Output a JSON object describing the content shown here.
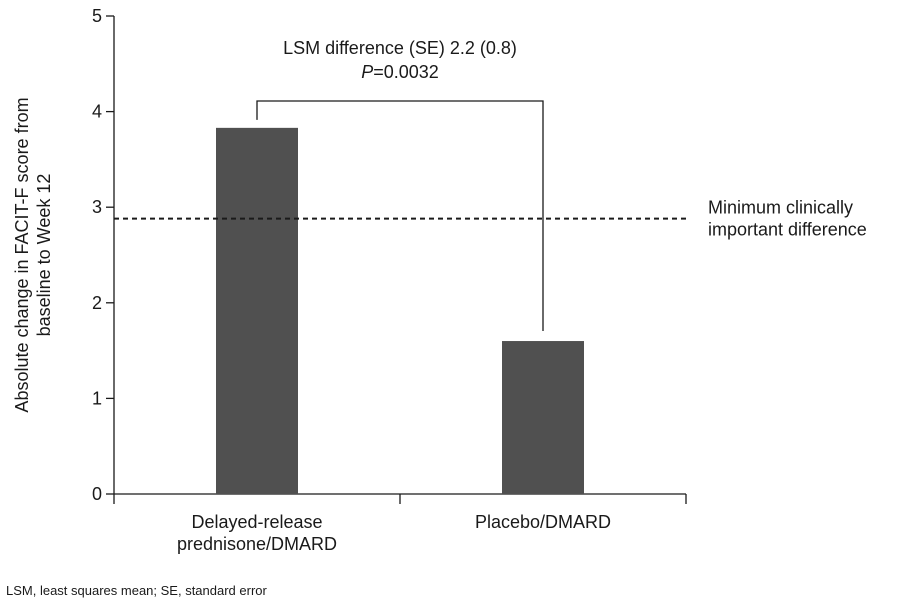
{
  "chart_data": {
    "type": "bar",
    "categories": [
      [
        "Delayed-release",
        "prednisone/DMARD"
      ],
      [
        "Placebo/DMARD"
      ]
    ],
    "values": [
      3.83,
      1.6
    ],
    "bar_color": "#505050",
    "ylabel": [
      "Absolute change in FACIT-F score from",
      "baseline to Week 12"
    ],
    "ylim": [
      0,
      5
    ],
    "yticks": [
      0,
      1,
      2,
      3,
      4,
      5
    ],
    "grid": false,
    "reference_line": {
      "value": 2.88,
      "style": "dashed",
      "label": [
        "Minimum clinically",
        "important difference"
      ]
    },
    "comparison": {
      "line1": "LSM difference (SE) 2.2 (0.8)",
      "p_label": "P",
      "p_value": "=0.0032"
    }
  },
  "footnote": "LSM, least squares mean; SE, standard error"
}
